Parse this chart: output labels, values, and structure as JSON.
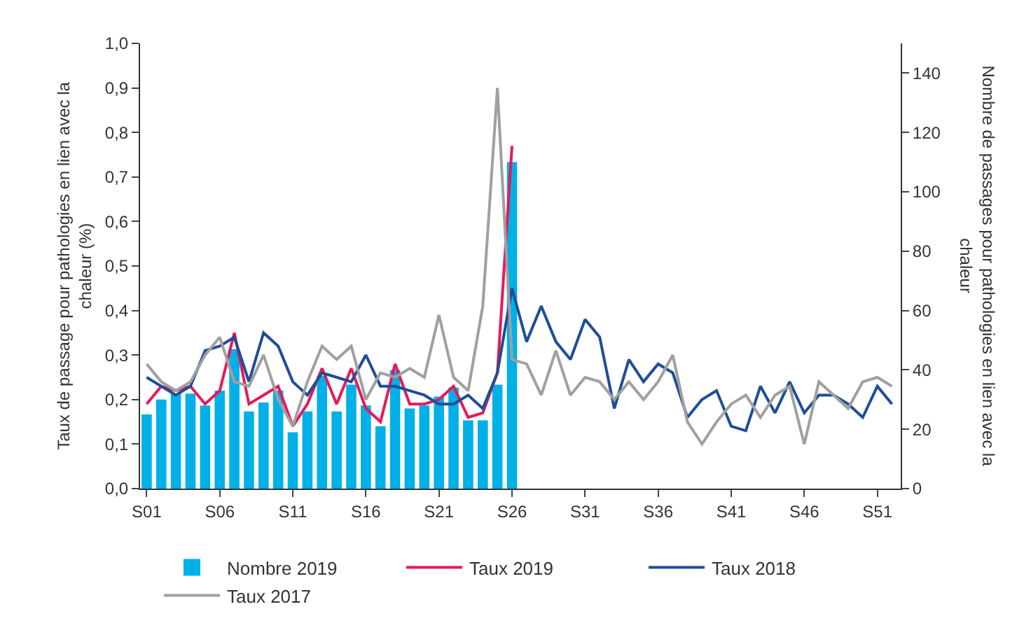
{
  "chart_data": {
    "type": "line",
    "ylabel": "Taux de passage pour pathologies en lien avec la chaleur (%)",
    "y2label": "Nombre de passages pour pathologies en lien avec la chaleur",
    "categories": [
      "S01",
      null,
      null,
      null,
      null,
      "S06",
      null,
      null,
      null,
      null,
      "S11",
      null,
      null,
      null,
      null,
      "S16",
      null,
      null,
      null,
      null,
      "S21",
      null,
      null,
      null,
      null,
      "S26",
      null,
      null,
      null,
      null,
      "S31",
      null,
      null,
      null,
      null,
      "S36",
      null,
      null,
      null,
      null,
      "S41",
      null,
      null,
      null,
      null,
      "S46",
      null,
      null,
      null,
      null,
      "S51",
      null
    ],
    "ylim": [
      0,
      1
    ],
    "yticks": [
      {
        "value": 0,
        "label": "0,0"
      },
      {
        "value": 0.1,
        "label": "0,1"
      },
      {
        "value": 0.2,
        "label": "0,2"
      },
      {
        "value": 0.3,
        "label": "0,3"
      },
      {
        "value": 0.4,
        "label": "0,4"
      },
      {
        "value": 0.5,
        "label": "0,5"
      },
      {
        "value": 0.6,
        "label": "0,6"
      },
      {
        "value": 0.7,
        "label": "0,7"
      },
      {
        "value": 0.8,
        "label": "0,8"
      },
      {
        "value": 0.9,
        "label": "0,9"
      },
      {
        "value": 1,
        "label": "1,0"
      }
    ],
    "y2lim": [
      0,
      150
    ],
    "y2ticks": [
      0,
      20,
      40,
      60,
      80,
      100,
      120,
      140
    ],
    "legend": "bottom",
    "grid": false,
    "marker": "none",
    "line_style": "solid",
    "series": [
      {
        "name": "Nombre 2019",
        "type": "bar",
        "axis": "y2",
        "color": "#00b0e6",
        "values": [
          25,
          30,
          32,
          32,
          28,
          33,
          47,
          26,
          29,
          33,
          19,
          26,
          38,
          26,
          35,
          28,
          21,
          40,
          27,
          28,
          31,
          34,
          23,
          23,
          35,
          110,
          null,
          null,
          null,
          null,
          null,
          null,
          null,
          null,
          null,
          null,
          null,
          null,
          null,
          null,
          null,
          null,
          null,
          null,
          null,
          null,
          null,
          null,
          null,
          null,
          null,
          null
        ]
      },
      {
        "name": "Taux 2019",
        "color": "#e6195a",
        "values": [
          0.19,
          0.23,
          0.22,
          0.23,
          0.19,
          0.22,
          0.35,
          0.19,
          0.21,
          0.23,
          0.14,
          0.19,
          0.27,
          0.19,
          0.27,
          0.18,
          0.15,
          0.28,
          0.19,
          0.19,
          0.2,
          0.23,
          0.16,
          0.17,
          0.26,
          0.77,
          null,
          null,
          null,
          null,
          null,
          null,
          null,
          null,
          null,
          null,
          null,
          null,
          null,
          null,
          null,
          null,
          null,
          null,
          null,
          null,
          null,
          null,
          null,
          null,
          null,
          null
        ]
      },
      {
        "name": "Taux 2018",
        "color": "#1f4e96",
        "values": [
          0.25,
          0.23,
          0.21,
          0.23,
          0.31,
          0.32,
          0.34,
          0.24,
          0.35,
          0.32,
          0.24,
          0.21,
          0.26,
          0.25,
          0.24,
          0.3,
          0.23,
          0.23,
          0.22,
          0.21,
          0.19,
          0.19,
          0.21,
          0.18,
          0.26,
          0.45,
          0.33,
          0.41,
          0.33,
          0.29,
          0.38,
          0.34,
          0.18,
          0.29,
          0.24,
          0.28,
          0.26,
          0.16,
          0.2,
          0.22,
          0.14,
          0.13,
          0.23,
          0.17,
          0.24,
          0.17,
          0.21,
          0.21,
          0.19,
          0.16,
          0.23,
          0.19
        ]
      },
      {
        "name": "Taux 2017",
        "color": "#a0a0a0",
        "values": [
          0.28,
          0.24,
          0.22,
          0.24,
          0.3,
          0.34,
          0.24,
          0.23,
          0.3,
          0.2,
          0.14,
          0.24,
          0.32,
          0.29,
          0.32,
          0.2,
          0.26,
          0.25,
          0.27,
          0.25,
          0.39,
          0.25,
          0.22,
          0.41,
          0.9,
          0.29,
          0.28,
          0.21,
          0.31,
          0.21,
          0.25,
          0.24,
          0.2,
          0.24,
          0.2,
          0.24,
          0.3,
          0.15,
          0.1,
          0.15,
          0.19,
          0.21,
          0.16,
          0.21,
          0.23,
          0.1,
          0.24,
          0.21,
          0.18,
          0.24,
          0.25,
          0.23
        ]
      }
    ]
  }
}
